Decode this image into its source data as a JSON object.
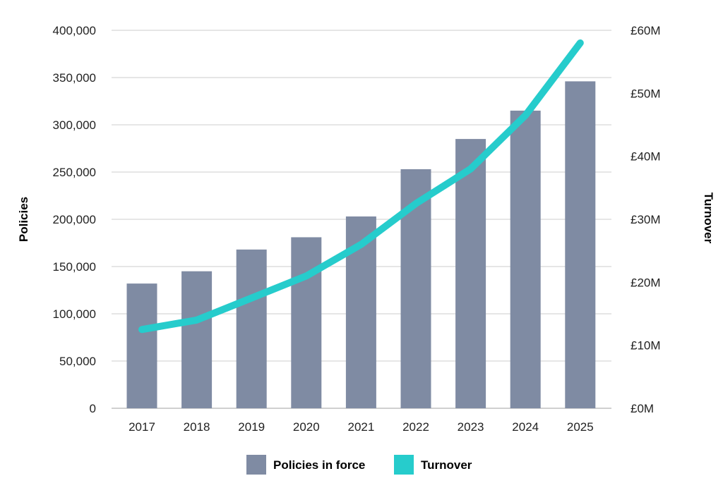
{
  "chart_data": {
    "type": "bar",
    "categories": [
      "2017",
      "2018",
      "2019",
      "2020",
      "2021",
      "2022",
      "2023",
      "2024",
      "2025"
    ],
    "series": [
      {
        "name": "Policies in force",
        "type": "bar",
        "axis": "left",
        "color": "#7f8ba3",
        "values": [
          132000,
          145000,
          168000,
          181000,
          203000,
          253000,
          285000,
          315000,
          346000
        ]
      },
      {
        "name": "Turnover",
        "type": "line",
        "axis": "right",
        "color": "#26cccc",
        "values": [
          12.5,
          14,
          17.5,
          21,
          26,
          32.5,
          38,
          46.5,
          58
        ]
      }
    ],
    "ylabel": "Policies",
    "y2label": "Turnover",
    "ylim": [
      0,
      400000
    ],
    "y2lim": [
      0,
      60
    ],
    "yticks": [
      "0",
      "50,000",
      "100,000",
      "150,000",
      "200,000",
      "250,000",
      "300,000",
      "350,000",
      "400,000"
    ],
    "y2ticks": [
      "£0M",
      "£10M",
      "£20M",
      "£30M",
      "£40M",
      "£50M",
      "£60M"
    ],
    "grid": true,
    "legend": {
      "position": "bottom-center",
      "entries": [
        "Policies in force",
        "Turnover"
      ]
    }
  }
}
